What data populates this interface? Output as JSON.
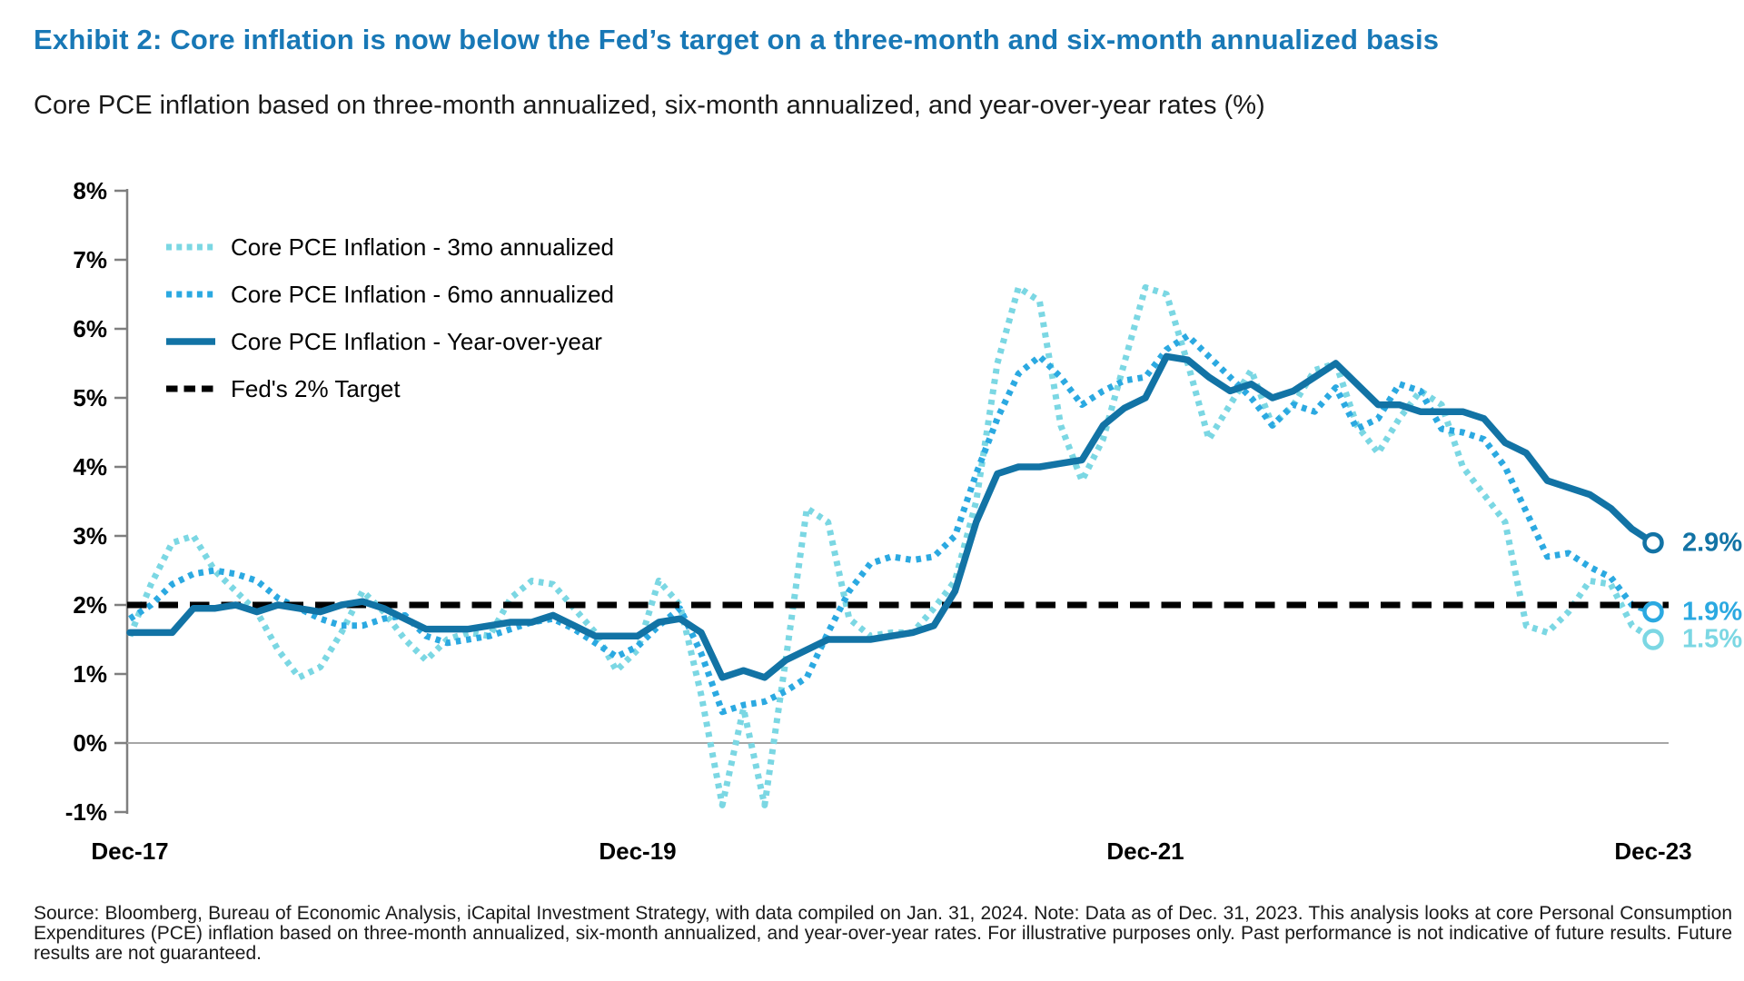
{
  "title": "Exhibit 2: Core inflation is now below the Fed’s target on a three-month and six-month annualized basis",
  "subtitle": "Core PCE inflation based on three-month annualized, six-month annualized, and year-over-year rates (%)",
  "source_note": "Source: Bloomberg, Bureau of Economic Analysis, iCapital Investment Strategy, with data compiled on Jan. 31, 2024. Note: Data as of Dec. 31, 2023. This analysis looks at core Personal Consumption Expenditures (PCE) inflation based on three-month annualized, six-month annualized, and year-over-year rates. For illustrative purposes only. Past performance is not indicative of future results. Future results are not guaranteed.",
  "colors": {
    "title_blue": "#1878B6",
    "series_3mo": "#7BD7E3",
    "series_6mo": "#2BA9E1",
    "series_yoy": "#1273A5",
    "target_black": "#000000",
    "axis_gray": "#7F7F7F",
    "zero_line_gray": "#A6A6A6"
  },
  "chart_data": {
    "type": "line",
    "title": "Core PCE inflation based on three-month annualized, six-month annualized, and year-over-year rates (%)",
    "x_start": "Dec-17",
    "x_end": "Dec-23",
    "x_frequency": "monthly",
    "x_tick_labels": [
      "Dec-17",
      "Dec-19",
      "Dec-21",
      "Dec-23"
    ],
    "y_tick_labels": [
      "8%",
      "7%",
      "6%",
      "5%",
      "4%",
      "3%",
      "2%",
      "1%",
      "0%",
      "-1%"
    ],
    "ylim": [
      -1,
      8
    ],
    "legend_position": "top-left-inside",
    "grid": "zero-line-only",
    "series": [
      {
        "key": "3mo",
        "name": "Core PCE Inflation - 3mo annualized",
        "style": "dotted",
        "color": "#7BD7E3",
        "end_label": "1.5%",
        "values": [
          1.55,
          2.3,
          2.9,
          3.0,
          2.5,
          2.2,
          1.9,
          1.35,
          0.95,
          1.1,
          1.6,
          2.2,
          1.9,
          1.5,
          1.2,
          1.5,
          1.6,
          1.55,
          2.1,
          2.35,
          2.3,
          1.95,
          1.6,
          1.05,
          1.35,
          2.35,
          2.0,
          0.7,
          -0.9,
          0.5,
          -0.9,
          1.2,
          3.4,
          3.2,
          1.8,
          1.55,
          1.6,
          1.6,
          1.95,
          2.35,
          3.5,
          5.5,
          6.6,
          6.4,
          4.6,
          3.8,
          4.4,
          5.5,
          6.6,
          6.5,
          5.5,
          4.4,
          4.9,
          5.4,
          4.6,
          4.9,
          5.4,
          5.5,
          4.6,
          4.2,
          4.7,
          5.1,
          4.9,
          4.0,
          3.6,
          3.2,
          1.7,
          1.6,
          1.9,
          2.35,
          2.3,
          1.7,
          1.5
        ]
      },
      {
        "key": "6mo",
        "name": "Core PCE Inflation - 6mo annualized",
        "style": "dotted",
        "color": "#2BA9E1",
        "end_label": "1.9%",
        "values": [
          1.8,
          2.0,
          2.3,
          2.45,
          2.5,
          2.45,
          2.35,
          2.1,
          1.95,
          1.8,
          1.7,
          1.7,
          1.8,
          1.85,
          1.55,
          1.45,
          1.5,
          1.55,
          1.65,
          1.75,
          1.8,
          1.65,
          1.45,
          1.25,
          1.4,
          1.7,
          1.95,
          1.3,
          0.45,
          0.55,
          0.6,
          0.75,
          0.95,
          1.6,
          2.2,
          2.6,
          2.7,
          2.65,
          2.7,
          3.0,
          3.9,
          4.7,
          5.35,
          5.6,
          5.3,
          4.9,
          5.1,
          5.25,
          5.3,
          5.7,
          5.9,
          5.6,
          5.3,
          5.0,
          4.6,
          4.9,
          4.8,
          5.15,
          4.55,
          4.7,
          5.2,
          5.1,
          4.55,
          4.5,
          4.4,
          4.0,
          3.35,
          2.7,
          2.75,
          2.55,
          2.4,
          2.0,
          1.9
        ]
      },
      {
        "key": "yoy",
        "name": "Core PCE Inflation - Year-over-year",
        "style": "solid",
        "color": "#1273A5",
        "end_label": "2.9%",
        "values": [
          1.6,
          1.6,
          1.6,
          1.95,
          1.95,
          2.0,
          1.9,
          2.0,
          1.95,
          1.9,
          2.0,
          2.05,
          1.95,
          1.8,
          1.65,
          1.65,
          1.65,
          1.7,
          1.75,
          1.75,
          1.85,
          1.7,
          1.55,
          1.55,
          1.55,
          1.75,
          1.8,
          1.6,
          0.95,
          1.05,
          0.95,
          1.2,
          1.35,
          1.5,
          1.5,
          1.5,
          1.55,
          1.6,
          1.7,
          2.2,
          3.2,
          3.9,
          4.0,
          4.0,
          4.05,
          4.1,
          4.6,
          4.85,
          5.0,
          5.6,
          5.55,
          5.3,
          5.1,
          5.2,
          5.0,
          5.1,
          5.3,
          5.5,
          5.2,
          4.9,
          4.9,
          4.8,
          4.8,
          4.8,
          4.7,
          4.35,
          4.2,
          3.8,
          3.7,
          3.6,
          3.4,
          3.1,
          2.9
        ]
      },
      {
        "key": "target",
        "name": "Fed's 2% Target",
        "style": "dashed",
        "color": "#000000",
        "value": 2
      }
    ]
  }
}
